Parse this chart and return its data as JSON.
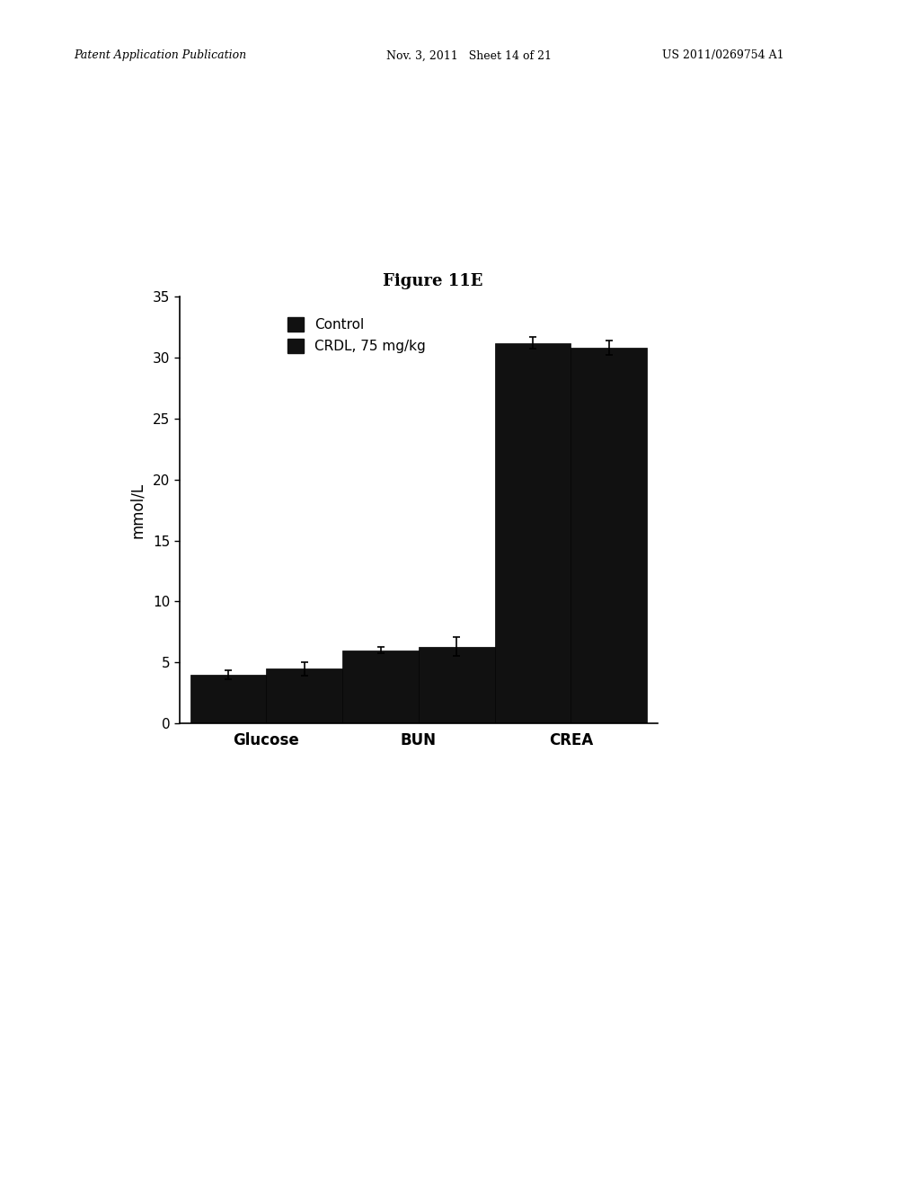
{
  "title": "Figure 11E",
  "ylabel": "mmol/L",
  "categories": [
    "Glucose",
    "BUN",
    "CREA"
  ],
  "series": [
    {
      "label": "Control",
      "values": [
        4.0,
        6.0,
        31.2
      ],
      "errors": [
        0.35,
        0.25,
        0.5
      ],
      "color": "#111111"
    },
    {
      "label": "CRDL, 75 mg/kg",
      "values": [
        4.5,
        6.3,
        30.8
      ],
      "errors": [
        0.55,
        0.75,
        0.6
      ],
      "color": "#111111"
    }
  ],
  "ylim": [
    0,
    35
  ],
  "yticks": [
    0,
    5,
    10,
    15,
    20,
    25,
    30,
    35
  ],
  "bar_width": 0.35,
  "background_color": "#ffffff",
  "title_fontsize": 13,
  "axis_label_fontsize": 12,
  "tick_fontsize": 11,
  "legend_fontsize": 11,
  "category_fontsize": 12,
  "header_left": "Patent Application Publication",
  "header_mid": "Nov. 3, 2011   Sheet 14 of 21",
  "header_right": "US 2011/0269754 A1"
}
